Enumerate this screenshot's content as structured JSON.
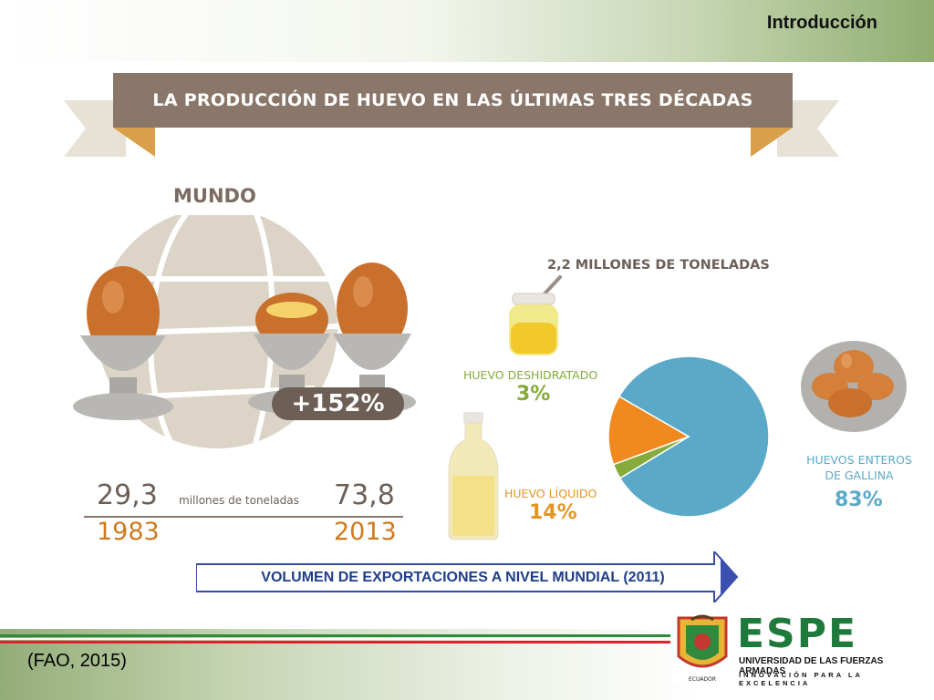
{
  "slide": {
    "title": "Introducción",
    "citation": "(FAO, 2015)"
  },
  "banner": {
    "text": "LA PRODUCCIÓN DE HUEVO EN LAS ÚLTIMAS TRES DÉCADAS"
  },
  "world": {
    "heading": "MUNDO",
    "growth": "+152%",
    "value_1983": "29,3",
    "value_2013": "73,8",
    "unit": "millones de toneladas",
    "year_1983": "1983",
    "year_2013": "2013"
  },
  "chart_data": {
    "type": "pie",
    "title": "2,2 MILLONES DE TONELADAS",
    "slices": [
      {
        "label": "HUEVOS ENTEROS DE GALLINA",
        "value": 83,
        "display": "83%",
        "color": "#5aa9c8"
      },
      {
        "label": "HUEVO DESHIDRATADO",
        "value": 3,
        "display": "3%",
        "color": "#86aa3c"
      },
      {
        "label": "HUEVO LÍQUIDO",
        "value": 14,
        "display": "14%",
        "color": "#f0891e"
      }
    ]
  },
  "labels": {
    "dehydrated": "HUEVO DESHIDRATADO",
    "liquid": "HUEVO LÍQUIDO",
    "whole_line1": "HUEVOS ENTEROS",
    "whole_line2": "DE GALLINA"
  },
  "footer_arrow": {
    "text": "VOLUMEN DE EXPORTACIONES A NIVEL MUNDIAL (2011)"
  },
  "logo": {
    "wordmark": "ESPE",
    "line1": "UNIVERSIDAD DE LAS FUERZAS ARMADAS",
    "line2": "INNOVACIÓN PARA LA EXCELENCIA",
    "seal_text": "ECUADOR"
  }
}
